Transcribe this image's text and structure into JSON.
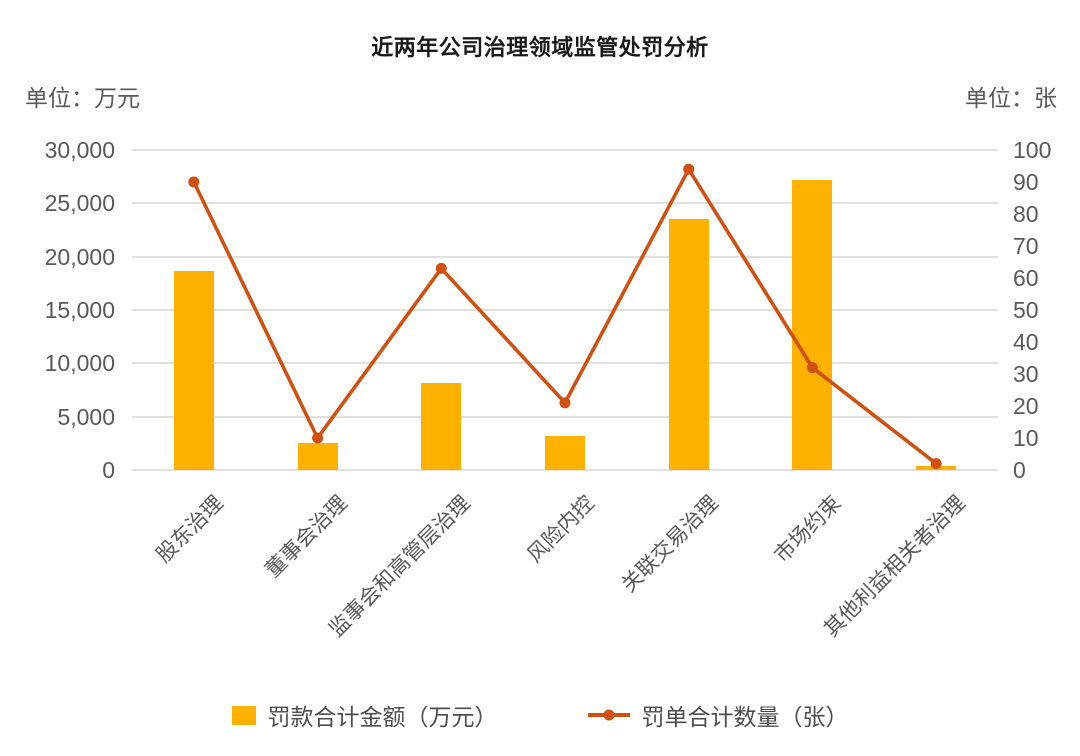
{
  "chart_data": {
    "type": "combo-bar-line",
    "title": "近两年公司治理领域监管处罚分析",
    "categories": [
      "股东治理",
      "董事会治理",
      "监事会和高管层治理",
      "风险内控",
      "关联交易治理",
      "市场约束",
      "其他利益相关者治理"
    ],
    "series": [
      {
        "name": "罚款合计金额（万元）",
        "type": "bar",
        "axis": "left",
        "color": "#FFB100",
        "values": [
          18700,
          2500,
          8200,
          3200,
          23500,
          27200,
          400
        ]
      },
      {
        "name": "罚单合计数量（张）",
        "type": "line",
        "axis": "right",
        "color": "#D1500F",
        "values": [
          90,
          10,
          63,
          21,
          94,
          32,
          2
        ]
      }
    ],
    "left_axis": {
      "unit": "单位：万元",
      "min": 0,
      "max": 30000,
      "step": 5000,
      "tick_labels": [
        "0",
        "5,000",
        "10,000",
        "15,000",
        "20,000",
        "25,000",
        "30,000"
      ]
    },
    "right_axis": {
      "unit": "单位：张",
      "min": 0,
      "max": 100,
      "step": 10,
      "tick_labels": [
        "0",
        "10",
        "20",
        "30",
        "40",
        "50",
        "60",
        "70",
        "80",
        "90",
        "100"
      ]
    },
    "grid": true,
    "legend_position": "bottom"
  },
  "colors": {
    "gridline": "#E0E0E0",
    "axis_text": "#595959",
    "title_text": "#1A1A1A",
    "background": "#FFFFFF"
  }
}
